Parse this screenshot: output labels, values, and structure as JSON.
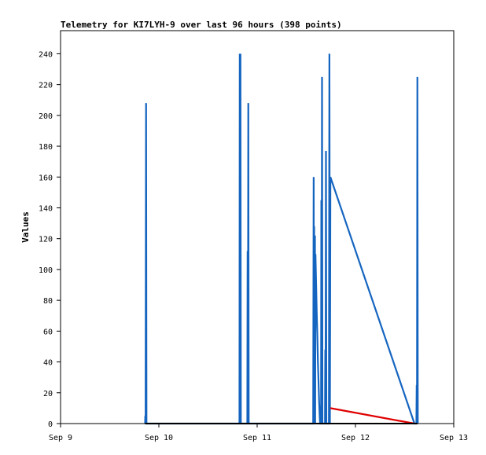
{
  "chart_data": {
    "type": "line",
    "title": "Telemetry for KI7LYH-9 over last 96 hours (398 points)",
    "xlabel": "",
    "ylabel": "Values",
    "x_range": [
      "Sep 9",
      "Sep 13"
    ],
    "xlim": [
      0,
      4
    ],
    "ylim": [
      0,
      255
    ],
    "x_tick_labels": [
      "Sep 9",
      "Sep 10",
      "Sep 11",
      "Sep 12",
      "Sep 13"
    ],
    "x_tick_values": [
      0,
      1,
      2,
      3,
      4
    ],
    "y_tick_values": [
      0,
      20,
      40,
      60,
      80,
      100,
      120,
      140,
      160,
      180,
      200,
      220,
      240
    ],
    "grid": false,
    "legend": "none",
    "colors": {
      "blue": "#1565c0",
      "red": "#e00000",
      "black": "#000000"
    },
    "series": [
      {
        "color": "#1565c0",
        "points": [
          [
            0.86,
            0
          ],
          [
            0.862,
            5
          ],
          [
            0.865,
            0
          ],
          [
            0.87,
            208
          ],
          [
            0.874,
            0
          ],
          [
            1.82,
            0
          ],
          [
            1.823,
            240
          ],
          [
            1.826,
            0
          ],
          [
            1.83,
            240
          ],
          [
            1.834,
            0
          ],
          [
            1.9,
            0
          ],
          [
            1.903,
            112
          ],
          [
            1.906,
            0
          ],
          [
            1.91,
            208
          ],
          [
            1.914,
            0
          ],
          [
            2.57,
            0
          ],
          [
            2.575,
            160
          ],
          [
            2.578,
            0
          ],
          [
            2.58,
            128
          ],
          [
            2.585,
            0
          ],
          [
            2.588,
            122
          ],
          [
            2.59,
            0
          ],
          [
            2.593,
            110
          ],
          [
            2.6,
            90
          ],
          [
            2.606,
            72
          ],
          [
            2.612,
            58
          ],
          [
            2.618,
            40
          ],
          [
            2.624,
            28
          ],
          [
            2.63,
            15
          ],
          [
            2.636,
            5
          ],
          [
            2.64,
            0
          ],
          [
            2.65,
            0
          ],
          [
            2.653,
            145
          ],
          [
            2.656,
            0
          ],
          [
            2.66,
            225
          ],
          [
            2.664,
            0
          ],
          [
            2.69,
            0
          ],
          [
            2.693,
            48
          ],
          [
            2.696,
            0
          ],
          [
            2.7,
            177
          ],
          [
            2.704,
            0
          ],
          [
            2.73,
            0
          ],
          [
            2.735,
            240
          ],
          [
            2.74,
            0
          ],
          [
            2.745,
            160
          ],
          [
            3.6,
            0
          ],
          [
            3.62,
            0
          ],
          [
            3.623,
            25
          ],
          [
            3.626,
            0
          ],
          [
            3.63,
            225
          ],
          [
            3.634,
            0
          ]
        ]
      },
      {
        "color": "#e00000",
        "points": [
          [
            2.745,
            10
          ],
          [
            3.6,
            0
          ]
        ]
      },
      {
        "color": "#000000",
        "points": [
          [
            0.86,
            0
          ],
          [
            3.63,
            0
          ]
        ]
      }
    ]
  }
}
